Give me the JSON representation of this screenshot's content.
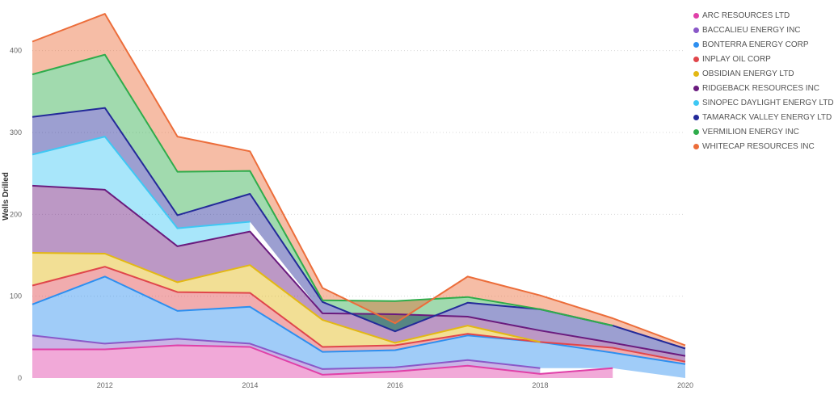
{
  "chart_data": {
    "type": "area",
    "stacked": true,
    "title": "",
    "ylabel": "Wells Drilled",
    "xlabel": "",
    "x": [
      2011,
      2012,
      2013,
      2014,
      2015,
      2016,
      2017,
      2018,
      2019,
      2020
    ],
    "x_ticks": [
      "2012",
      "2014",
      "2016",
      "2018",
      "2020"
    ],
    "y_ticks": [
      "0",
      "100",
      "200",
      "300",
      "400"
    ],
    "ylim": [
      0,
      450
    ],
    "xlim": [
      2011,
      2020
    ],
    "series": [
      {
        "name": "ARC RESOURCES LTD",
        "color": "#e040a8",
        "values": [
          35,
          35,
          40,
          38,
          4,
          8,
          15,
          5,
          12,
          null
        ]
      },
      {
        "name": "BACCALIEU ENERGY INC",
        "color": "#8a58c8",
        "values": [
          17,
          7,
          8,
          4,
          7,
          5,
          7,
          7,
          null,
          null
        ]
      },
      {
        "name": "BONTERRA ENERGY CORP",
        "color": "#2d8ff0",
        "values": [
          38,
          82,
          34,
          45,
          21,
          21,
          30,
          32,
          19,
          17
        ]
      },
      {
        "name": "INPLAY OIL CORP",
        "color": "#e0464b",
        "values": [
          23,
          12,
          23,
          17,
          6,
          6,
          2,
          0,
          6,
          3
        ]
      },
      {
        "name": "OBSIDIAN ENERGY LTD",
        "color": "#e3b814",
        "values": [
          40,
          16,
          12,
          34,
          33,
          3,
          10,
          0,
          null,
          null
        ]
      },
      {
        "name": "RIDGEBACK RESOURCES INC",
        "color": "#6a1b7e",
        "values": [
          82,
          78,
          44,
          41,
          8,
          35,
          11,
          14,
          6,
          7
        ]
      },
      {
        "name": "SINOPEC DAYLIGHT ENERGY LTD",
        "color": "#3ec8f4",
        "values": [
          38,
          65,
          22,
          12,
          null,
          null,
          null,
          null,
          null,
          null
        ]
      },
      {
        "name": "TAMARACK VALLEY ENERGY LTD",
        "color": "#232a99",
        "values": [
          46,
          35,
          16,
          34,
          14,
          -21,
          17,
          26,
          21,
          9
        ]
      },
      {
        "name": "VERMILION ENERGY INC",
        "color": "#2fac4b",
        "values": [
          52,
          65,
          53,
          28,
          2,
          37,
          7,
          0,
          0,
          null
        ]
      },
      {
        "name": "WHITECAP RESOURCES INC",
        "color": "#ec6d3a",
        "values": [
          40,
          50,
          43,
          24,
          15,
          -27,
          25,
          17,
          9,
          4
        ]
      }
    ]
  }
}
